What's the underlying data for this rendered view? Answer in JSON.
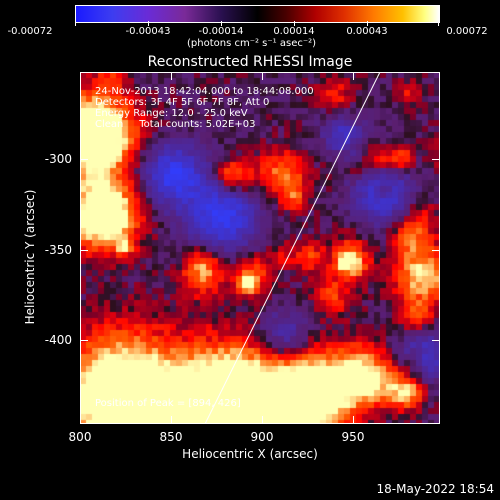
{
  "colorbar": {
    "ticks": [
      "-0.00072",
      "-0.00043",
      "-0.00014",
      "0.00014",
      "0.00043",
      "0.00072"
    ],
    "units_text": "(photons cm⁻² s⁻¹ asec⁻²)"
  },
  "title": "Reconstructed RHESSI Image",
  "info": {
    "line1": "24-Nov-2013 18:42:04.000 to 18:44:08.000",
    "line2": "Detectors: 3F 4F 5F 6F 7F 8F, Att 0",
    "line3": "Energy Range: 12.0 - 25.0 keV",
    "line4": "Clean     Total counts: 5.02E+03",
    "peak": "Position of Peak = [894, 426]"
  },
  "axes": {
    "x_title": "Heliocentric X (arcsec)",
    "y_title": "Heliocentric Y (arcsec)",
    "x_ticks": [
      "800",
      "850",
      "900",
      "950"
    ],
    "y_ticks": [
      "-300",
      "-350",
      "-400"
    ]
  },
  "timestamp": "18-May-2022 18:54"
}
